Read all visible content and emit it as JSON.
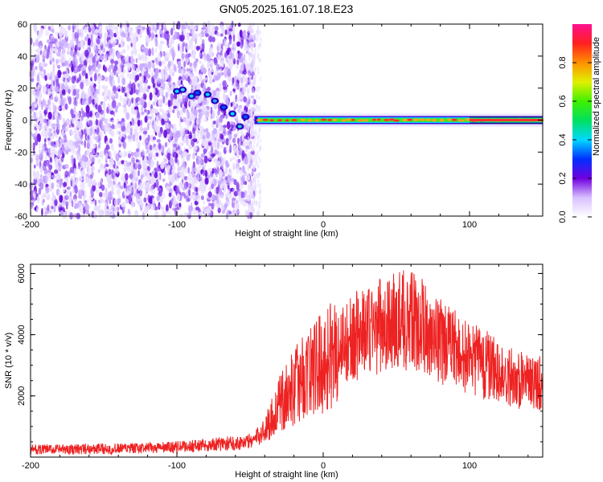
{
  "title": "GN05.2025.161.07.18.E23",
  "chart_data": [
    {
      "type": "heatmap",
      "xlabel": "Height of straight line (km)",
      "ylabel": "Frequency (Hz)",
      "xlim": [
        -200,
        150
      ],
      "ylim": [
        -60,
        60
      ],
      "xticks": [
        -200,
        -100,
        0,
        100
      ],
      "yticks": [
        -60,
        -40,
        -20,
        0,
        20,
        40,
        60
      ],
      "colorbar": {
        "label": "Normalized spectral amplitude",
        "range": [
          0,
          1
        ],
        "ticks": [
          0,
          0.2,
          0.4,
          0.6,
          0.8
        ]
      },
      "features": {
        "noise_region_x": [
          -200,
          -47
        ],
        "signal_band_x": [
          -47,
          150
        ],
        "signal_band_freq": 0
      }
    },
    {
      "type": "line",
      "xlabel": "Height of straight line (km)",
      "ylabel": "SNR (10 * v/v)",
      "xlim": [
        -200,
        150
      ],
      "ylim": [
        0,
        6300
      ],
      "xticks": [
        -200,
        -100,
        0,
        100
      ],
      "yticks": [
        2000,
        4000,
        6000
      ],
      "color": "#ee2222",
      "series": [
        {
          "x": [
            -200,
            -180,
            -160,
            -140,
            -120,
            -100,
            -80,
            -60,
            -50,
            -45,
            -40,
            -35,
            -30,
            -20,
            -10,
            0,
            5,
            10,
            20,
            30,
            40,
            50,
            55,
            60,
            65,
            70,
            80,
            90,
            100,
            110,
            120,
            130,
            140,
            150
          ],
          "values": [
            250,
            250,
            260,
            270,
            290,
            330,
            390,
            460,
            520,
            650,
            900,
            1300,
            1700,
            2300,
            2800,
            3100,
            3300,
            3600,
            3900,
            4150,
            4300,
            4400,
            4500,
            4450,
            4350,
            4200,
            3800,
            3500,
            3250,
            3050,
            2800,
            2600,
            2450,
            2400
          ]
        }
      ]
    }
  ]
}
